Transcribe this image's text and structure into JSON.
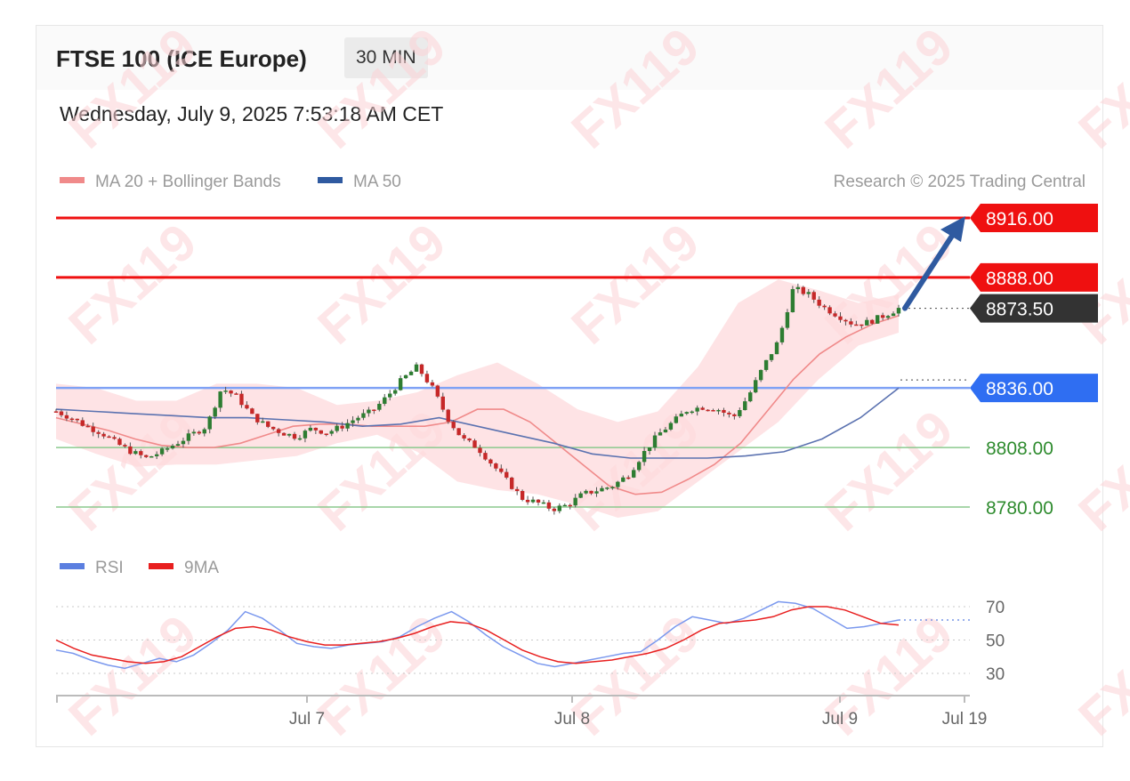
{
  "header": {
    "title": "FTSE 100 (ICE Europe)",
    "timeframe": "30 MIN",
    "datetime": "Wednesday, July 9, 2025 7:53:18 AM CET"
  },
  "watermark": "FX119",
  "legend": {
    "items": [
      {
        "label": "MA 20 + Bollinger Bands",
        "color": "#f08a8a"
      },
      {
        "label": "MA 50",
        "color": "#2f5aa0"
      }
    ],
    "credit": "Research © 2025 Trading Central"
  },
  "rsi_legend": {
    "items": [
      {
        "label": "RSI",
        "color": "#5b7fe0"
      },
      {
        "label": "9MA",
        "color": "#e81f1f"
      }
    ]
  },
  "colors": {
    "up": "#2e7d32",
    "down": "#c62828",
    "resistance": "#ef1010",
    "support": "#4caf50",
    "pivot": "#2f6ef2",
    "last": "#333333"
  },
  "chart_data": [
    {
      "type": "candlestick",
      "title": "FTSE 100 (ICE Europe)",
      "x_ticks": [
        "Jul 7",
        "Jul 8",
        "Jul 9",
        "Jul 19"
      ],
      "ylim": [
        8770,
        8925
      ],
      "levels": [
        {
          "value": 8916.0,
          "label": "8916.00",
          "kind": "resistance"
        },
        {
          "value": 8888.0,
          "label": "8888.00",
          "kind": "resistance"
        },
        {
          "value": 8873.5,
          "label": "8873.50",
          "kind": "last"
        },
        {
          "value": 8836.0,
          "label": "8836.00",
          "kind": "pivot"
        },
        {
          "value": 8808.0,
          "label": "8808.00",
          "kind": "support"
        },
        {
          "value": 8780.0,
          "label": "8780.00",
          "kind": "support"
        }
      ],
      "price_path": [
        8825,
        8822,
        8818,
        8815,
        8810,
        8806,
        8803,
        8806,
        8810,
        8814,
        8818,
        8836,
        8832,
        8823,
        8818,
        8815,
        8813,
        8817,
        8815,
        8818,
        8822,
        8825,
        8832,
        8840,
        8846,
        8836,
        8822,
        8812,
        8808,
        8800,
        8792,
        8784,
        8782,
        8779,
        8781,
        8786,
        8788,
        8790,
        8795,
        8805,
        8814,
        8820,
        8826,
        8827,
        8826,
        8822,
        8832,
        8846,
        8858,
        8883,
        8880,
        8874,
        8870,
        8866,
        8867,
        8870,
        8873.5
      ],
      "ma20": [
        8822,
        8819,
        8816,
        8812,
        8809,
        8808,
        8808,
        8810,
        8814,
        8818,
        8819,
        8819,
        8818,
        8818,
        8818,
        8820,
        8826,
        8826,
        8820,
        8810,
        8800,
        8790,
        8786,
        8787,
        8793,
        8800,
        8810,
        8825,
        8840,
        8852,
        8860,
        8866,
        8870
      ],
      "bb_upper": [
        8838,
        8836,
        8830,
        8830,
        8838,
        8838,
        8836,
        8828,
        8830,
        8834,
        8842,
        8848,
        8838,
        8826,
        8820,
        8825,
        8846,
        8876,
        8887,
        8882,
        8876,
        8880
      ],
      "bb_lower": [
        8812,
        8805,
        8799,
        8800,
        8800,
        8802,
        8804,
        8810,
        8814,
        8806,
        8792,
        8788,
        8786,
        8781,
        8775,
        8778,
        8792,
        8806,
        8820,
        8840,
        8856,
        8862
      ],
      "ma50": [
        8826,
        8825,
        8824,
        8823,
        8822,
        8822,
        8821,
        8820,
        8818,
        8819,
        8822,
        8818,
        8814,
        8810,
        8805,
        8803,
        8803,
        8803,
        8804,
        8806,
        8812,
        8822,
        8836
      ]
    },
    {
      "type": "line",
      "title": "RSI",
      "yticks": [
        30,
        50,
        70
      ],
      "series": [
        {
          "name": "RSI",
          "values": [
            44,
            42,
            38,
            35,
            33,
            36,
            39,
            37,
            41,
            48,
            56,
            67,
            63,
            56,
            48,
            46,
            45,
            47,
            48,
            49,
            52,
            58,
            63,
            67,
            61,
            53,
            46,
            41,
            36,
            34,
            36,
            38,
            40,
            42,
            43,
            50,
            58,
            64,
            62,
            60,
            63,
            68,
            73,
            72,
            69,
            63,
            57,
            58,
            60,
            62
          ]
        },
        {
          "name": "9MA",
          "values": [
            50,
            45,
            41,
            39,
            37,
            36,
            37,
            40,
            46,
            52,
            57,
            58,
            56,
            52,
            49,
            47,
            47,
            48,
            49,
            51,
            54,
            58,
            61,
            60,
            56,
            50,
            44,
            40,
            37,
            36,
            37,
            38,
            40,
            42,
            45,
            50,
            56,
            60,
            61,
            62,
            64,
            68,
            70,
            70,
            68,
            64,
            60,
            59
          ]
        }
      ]
    }
  ]
}
